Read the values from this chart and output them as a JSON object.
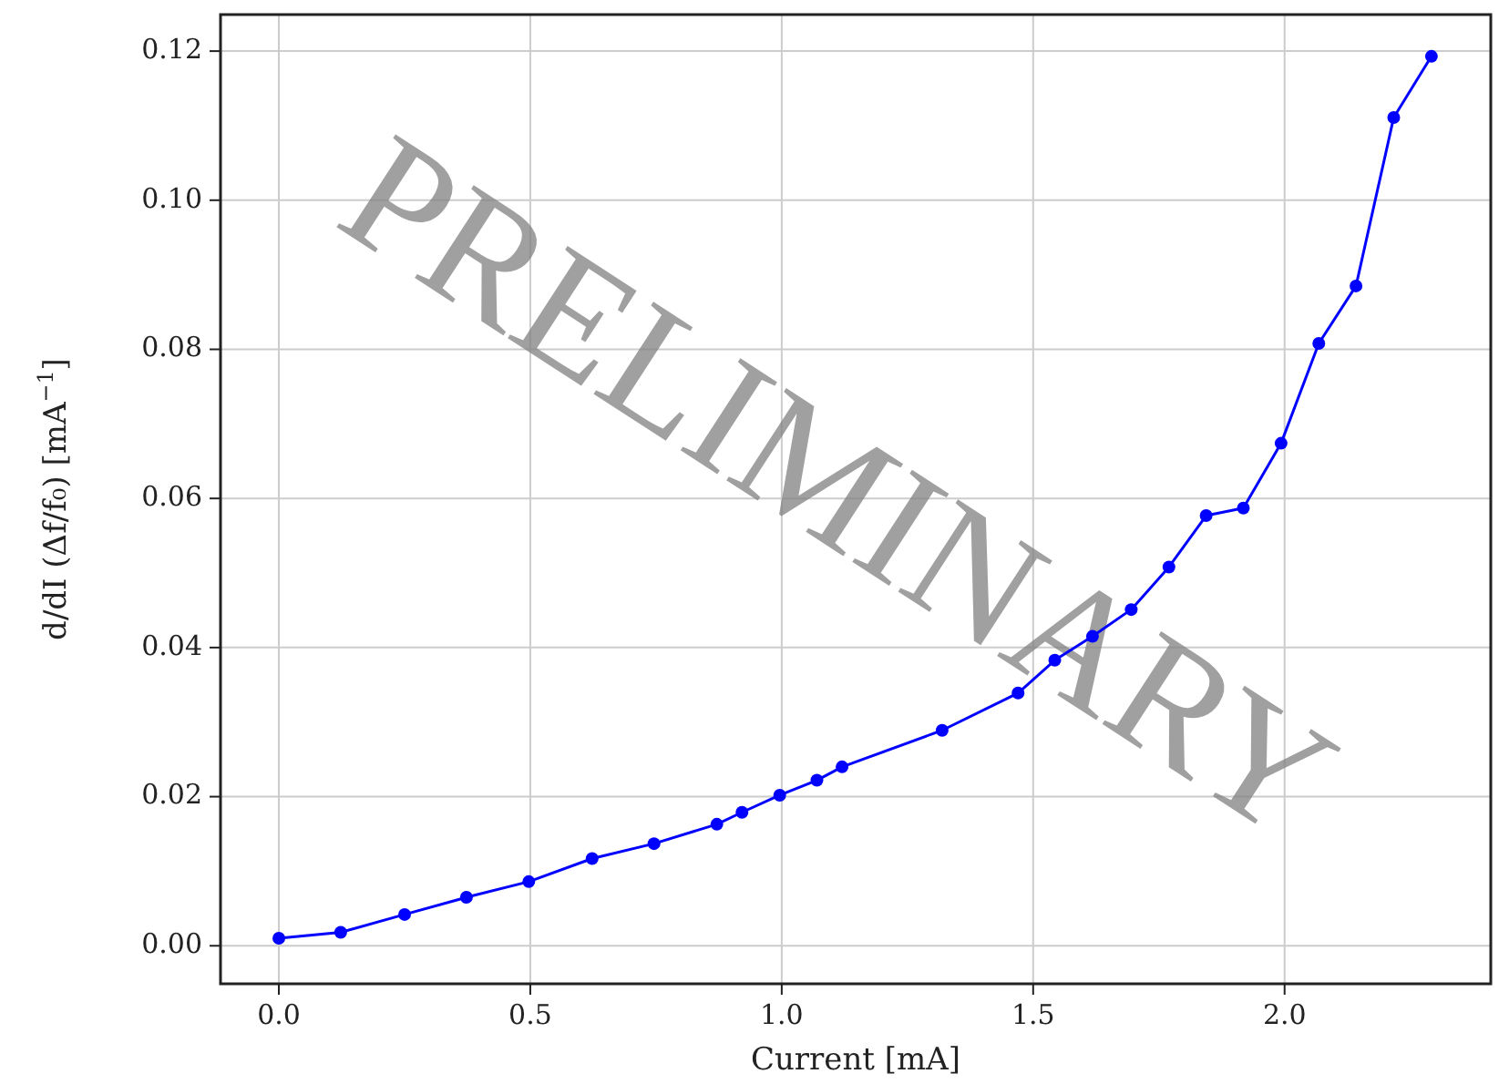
{
  "chart_data": {
    "type": "line",
    "xlabel": "Current [mA]",
    "ylabel": "d/dI (Δf/f₀) [mA$^{−1}$]",
    "annotations": [
      "PRELIMINARY"
    ],
    "series": [
      {
        "color": "#0000ff",
        "x": [
          0,
          0.123,
          0.25,
          0.373,
          0.497,
          0.623,
          0.746,
          0.871,
          0.921,
          0.996,
          1.07,
          1.12,
          1.319,
          1.47,
          1.543,
          1.618,
          1.695,
          1.77,
          1.844,
          1.918,
          1.993,
          2.068,
          2.142,
          2.217,
          2.292
        ],
        "values": [
          0.001,
          0.0018,
          0.0042,
          0.0065,
          0.0086,
          0.0117,
          0.0137,
          0.0163,
          0.0179,
          0.0202,
          0.0222,
          0.024,
          0.0289,
          0.0339,
          0.0383,
          0.0415,
          0.0451,
          0.0508,
          0.0577,
          0.0587,
          0.0674,
          0.0808,
          0.0885,
          0.1111,
          0.1193
        ]
      }
    ],
    "xlim": [
      -0.116,
      2.41
    ],
    "ylim": [
      -0.0051,
      0.1249
    ],
    "xticks": [
      {
        "value": 0,
        "label": "0.0"
      },
      {
        "value": 0.5,
        "label": "0.5"
      },
      {
        "value": 1,
        "label": "1.0"
      },
      {
        "value": 1.5,
        "label": "1.5"
      },
      {
        "value": 2,
        "label": "2.0"
      }
    ],
    "yticks": [
      {
        "value": 0,
        "label": "0.00"
      },
      {
        "value": 0.02,
        "label": "0.02"
      },
      {
        "value": 0.04,
        "label": "0.04"
      },
      {
        "value": 0.06,
        "label": "0.06"
      },
      {
        "value": 0.08,
        "label": "0.08"
      },
      {
        "value": 0.1,
        "label": "0.10"
      },
      {
        "value": 0.12,
        "label": "0.12"
      }
    ],
    "grid": true,
    "marker": "circle",
    "line_style": "solid"
  }
}
